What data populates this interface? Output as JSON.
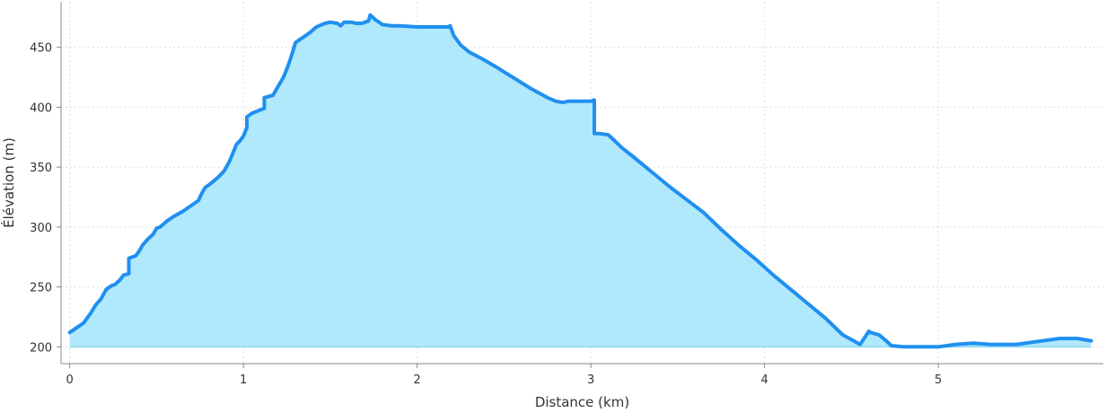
{
  "chart_data": {
    "type": "area",
    "title": "",
    "xlabel": "Distance (km)",
    "ylabel": "Élévation (m)",
    "xlim": [
      -0.05,
      5.95
    ],
    "ylim": [
      186,
      488
    ],
    "baseline": 200,
    "grid": true,
    "x_ticks": [
      0,
      1,
      2,
      3,
      4,
      5
    ],
    "y_ticks": [
      200,
      250,
      300,
      350,
      400,
      450
    ],
    "colors": {
      "line": "#2090f0",
      "fill": "#b0e9fb",
      "grid": "#dddddd",
      "axis": "#888888"
    },
    "series": [
      {
        "x": [
          0,
          0.03,
          0.08,
          0.12,
          0.15,
          0.18,
          0.21,
          0.24,
          0.26,
          0.29,
          0.31,
          0.34,
          0.34,
          0.38,
          0.4,
          0.42,
          0.45,
          0.48,
          0.5,
          0.52,
          0.56,
          0.6,
          0.65,
          0.7,
          0.74,
          0.76,
          0.78,
          0.8,
          0.85,
          0.89,
          0.92,
          0.94,
          0.96,
          0.98,
          1.0,
          1.02,
          1.02,
          1.05,
          1.1,
          1.12,
          1.12,
          1.17,
          1.19,
          1.21,
          1.23,
          1.25,
          1.27,
          1.3,
          1.35,
          1.38,
          1.42,
          1.47,
          1.5,
          1.54,
          1.56,
          1.58,
          1.62,
          1.65,
          1.68,
          1.7,
          1.72,
          1.73,
          1.76,
          1.8,
          1.85,
          1.9,
          2.0,
          2.1,
          2.18,
          2.19,
          2.21,
          2.25,
          2.3,
          2.38,
          2.45,
          2.55,
          2.65,
          2.75,
          2.8,
          2.84,
          2.87,
          2.9,
          2.95,
          3.0,
          3.02,
          3.02,
          3.05,
          3.1,
          3.13,
          3.18,
          3.25,
          3.35,
          3.45,
          3.55,
          3.65,
          3.75,
          3.85,
          3.95,
          4.05,
          4.15,
          4.25,
          4.35,
          4.45,
          4.55,
          4.6,
          4.61,
          4.66,
          4.7,
          4.73,
          4.8,
          4.9,
          5.0,
          5.05,
          5.1,
          5.2,
          5.3,
          5.45,
          5.6,
          5.7,
          5.8,
          5.88
        ],
        "values": [
          212,
          215,
          220,
          228,
          235,
          240,
          248,
          251,
          252,
          256,
          260,
          261,
          274,
          276,
          280,
          285,
          290,
          294,
          299,
          300,
          305,
          309,
          313,
          318,
          322,
          328,
          333,
          335,
          341,
          347,
          355,
          362,
          369,
          372,
          376,
          383,
          392,
          395,
          398,
          399,
          408,
          410,
          415,
          420,
          425,
          432,
          440,
          454,
          459,
          462,
          467,
          470,
          471,
          470,
          468,
          471,
          471,
          470,
          470,
          471,
          472,
          477,
          473,
          469,
          468,
          468,
          467,
          467,
          467,
          468,
          460,
          452,
          446,
          440,
          434,
          425,
          416,
          408,
          405,
          404,
          405,
          405,
          405,
          405,
          406,
          378,
          378,
          377,
          373,
          366,
          358,
          346,
          334,
          323,
          312,
          298,
          285,
          273,
          260,
          248,
          236,
          224,
          210,
          202,
          213,
          212,
          210,
          205,
          201,
          200,
          200,
          200,
          201,
          202,
          203,
          202,
          202,
          205,
          207,
          207,
          205
        ]
      }
    ]
  }
}
